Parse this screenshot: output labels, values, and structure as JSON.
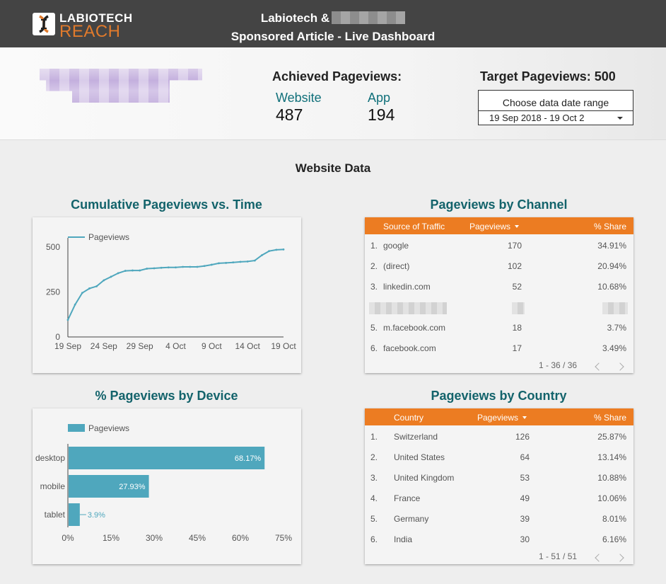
{
  "header": {
    "logo_line1": "LABIOTECH",
    "logo_line2": "REACH",
    "title_line1": "Labiotech &",
    "title_line2": "Sponsored Article - Live Dashboard"
  },
  "summary": {
    "achieved_title": "Achieved Pageviews:",
    "website_label": "Website",
    "website_value": "487",
    "app_label": "App",
    "app_value": "194",
    "target_label": "Target Pageviews: 500",
    "date_range_label": "Choose data date range",
    "date_range_value": "19 Sep 2018 - 19 Oct 2"
  },
  "section_title": "Website Data",
  "cumulative_chart": {
    "card_title": "Cumulative Pageviews vs. Time"
  },
  "device_chart": {
    "card_title": "% Pageviews by Device"
  },
  "chart_data": [
    {
      "type": "line",
      "title": "Cumulative Pageviews vs. Time",
      "series": [
        {
          "name": "Pageviews",
          "x": [
            "19 Sep",
            "20 Sep",
            "21 Sep",
            "22 Sep",
            "23 Sep",
            "24 Sep",
            "25 Sep",
            "26 Sep",
            "27 Sep",
            "28 Sep",
            "29 Sep",
            "30 Sep",
            "1 Oct",
            "2 Oct",
            "3 Oct",
            "4 Oct",
            "5 Oct",
            "6 Oct",
            "7 Oct",
            "8 Oct",
            "9 Oct",
            "10 Oct",
            "11 Oct",
            "12 Oct",
            "13 Oct",
            "14 Oct",
            "15 Oct",
            "16 Oct",
            "17 Oct",
            "18 Oct",
            "19 Oct"
          ],
          "values": [
            95,
            180,
            245,
            270,
            282,
            315,
            335,
            355,
            368,
            370,
            370,
            380,
            382,
            385,
            387,
            387,
            390,
            390,
            390,
            395,
            402,
            410,
            412,
            415,
            418,
            420,
            425,
            455,
            478,
            485,
            487
          ]
        }
      ],
      "x_ticks": [
        "19 Sep",
        "24 Sep",
        "29 Sep",
        "4 Oct",
        "9 Oct",
        "14 Oct",
        "19 Oct"
      ],
      "y_ticks": [
        "0",
        "250",
        "500"
      ],
      "ylim": [
        0,
        520
      ],
      "legend": "top-left",
      "color": "#4fa7bd"
    },
    {
      "type": "bar",
      "orientation": "horizontal",
      "title": "% Pageviews by Device",
      "categories": [
        "desktop",
        "mobile",
        "tablet"
      ],
      "series": [
        {
          "name": "Pageviews",
          "values": [
            68.17,
            27.93,
            3.9
          ]
        }
      ],
      "value_labels": [
        "68.17%",
        "27.93%",
        "3.9%"
      ],
      "x_ticks": [
        "0%",
        "15%",
        "30%",
        "45%",
        "60%",
        "75%"
      ],
      "xlim": [
        0,
        75
      ],
      "legend": "top-left",
      "color": "#4fa7bd"
    }
  ],
  "channel_table": {
    "card_title": "Pageviews by Channel",
    "headers": [
      "Source of Traffic",
      "Pageviews",
      "% Share"
    ],
    "rows": [
      {
        "idx": "1.",
        "name": "google",
        "views": "170",
        "share": "34.91%"
      },
      {
        "idx": "2.",
        "name": "(direct)",
        "views": "102",
        "share": "20.94%"
      },
      {
        "idx": "3.",
        "name": "linkedin.com",
        "views": "52",
        "share": "10.68%"
      },
      {
        "idx": "",
        "name": "",
        "views": "",
        "share": ""
      },
      {
        "idx": "5.",
        "name": "m.facebook.com",
        "views": "18",
        "share": "3.7%"
      },
      {
        "idx": "6.",
        "name": "facebook.com",
        "views": "17",
        "share": "3.49%"
      }
    ],
    "pagination": "1 - 36 / 36"
  },
  "country_table": {
    "card_title": "Pageviews by Country",
    "headers": [
      "Country",
      "Pageviews",
      "% Share"
    ],
    "rows": [
      {
        "idx": "1.",
        "name": "Switzerland",
        "views": "126",
        "share": "25.87%"
      },
      {
        "idx": "2.",
        "name": "United States",
        "views": "64",
        "share": "13.14%"
      },
      {
        "idx": "3.",
        "name": "United Kingdom",
        "views": "53",
        "share": "10.88%"
      },
      {
        "idx": "4.",
        "name": "France",
        "views": "49",
        "share": "10.06%"
      },
      {
        "idx": "5.",
        "name": "Germany",
        "views": "39",
        "share": "8.01%"
      },
      {
        "idx": "6.",
        "name": "India",
        "views": "30",
        "share": "6.16%"
      }
    ],
    "pagination": "1 - 51 / 51"
  },
  "colors": {
    "header_bg": "#444444",
    "accent_teal": "#13636b",
    "table_header": "#ec7c22",
    "series": "#4fa7bd",
    "logo_orange": "#e07a2c"
  }
}
